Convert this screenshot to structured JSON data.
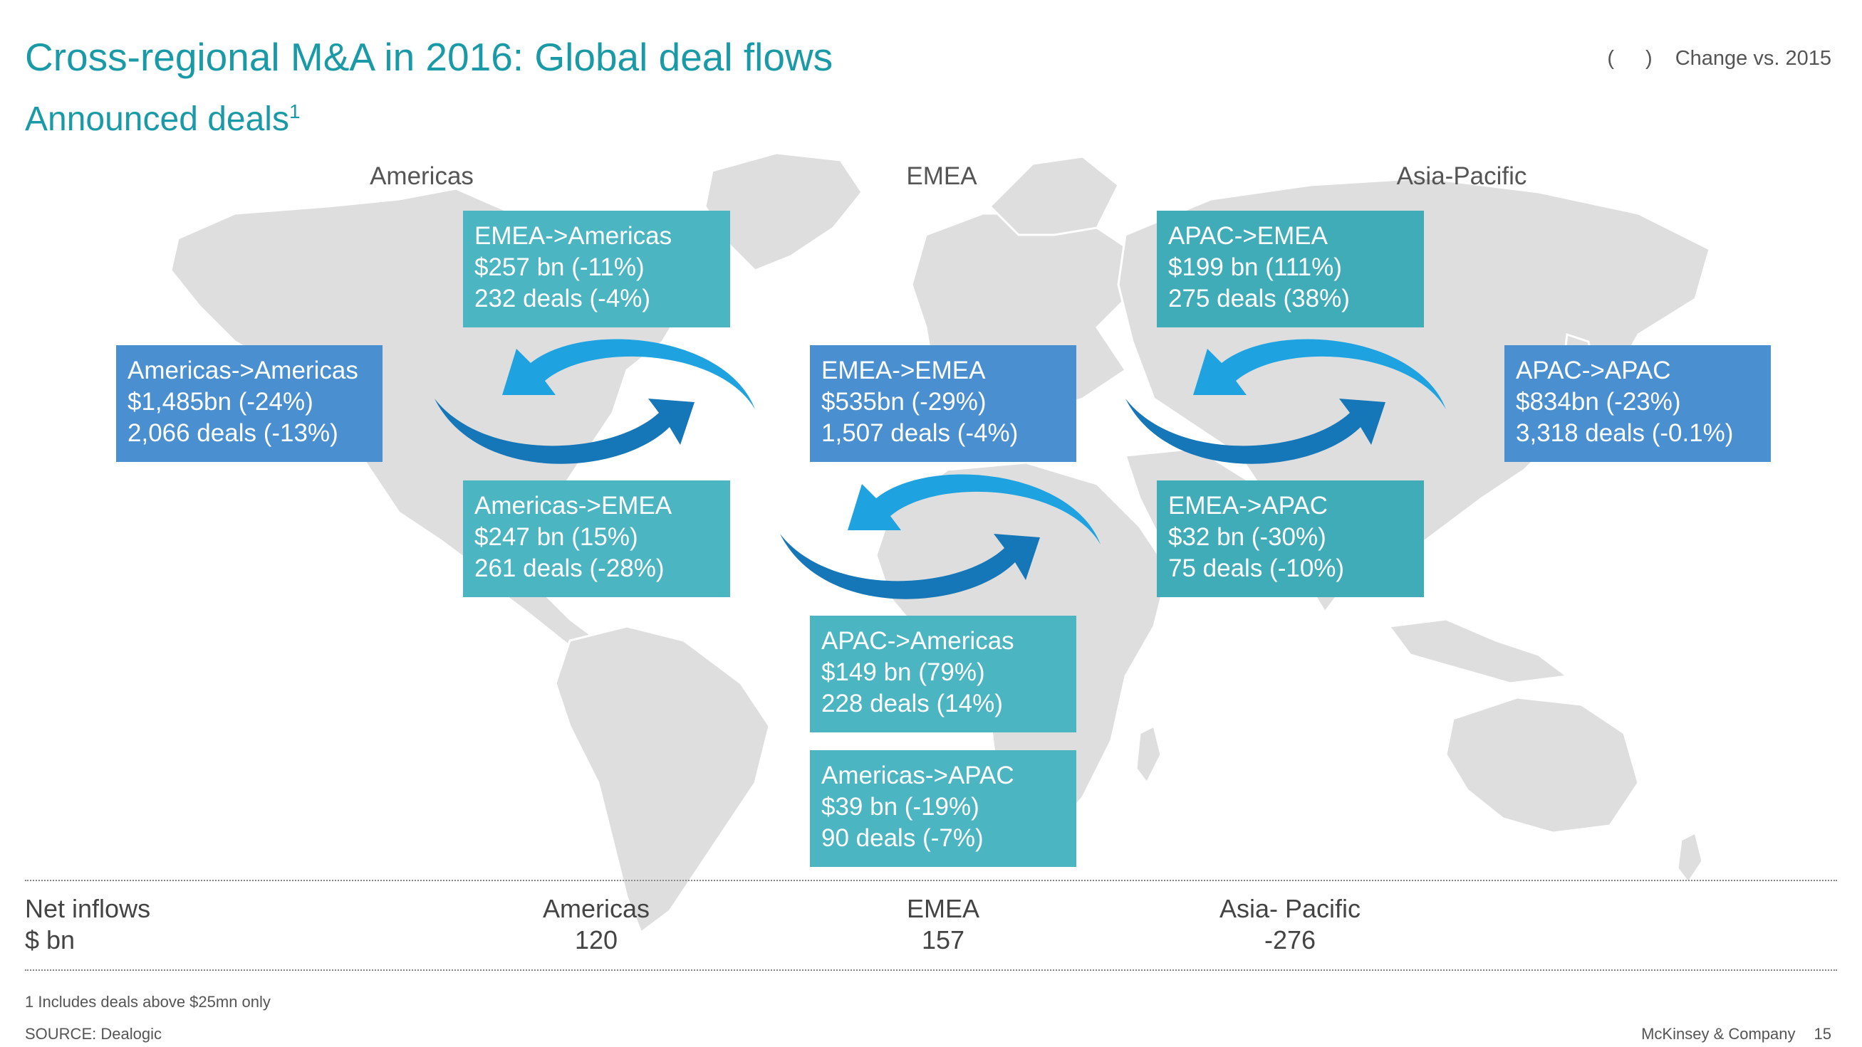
{
  "header": {
    "title": "Cross-regional M&A in 2016: Global deal flows",
    "subtitle": "Announced deals",
    "subtitle_sup": "1",
    "legend_symbol": "( )",
    "legend_label": "Change vs. 2015"
  },
  "regions": {
    "americas": "Americas",
    "emea": "EMEA",
    "apac": "Asia-Pacific"
  },
  "flows": {
    "emea_americas": {
      "label": "EMEA->Americas",
      "value": "$257 bn (-11%)",
      "deals": "232 deals (-4%)"
    },
    "americas_americas": {
      "label": "Americas->Americas",
      "value": "$1,485bn (-24%)",
      "deals": "2,066 deals (-13%)"
    },
    "americas_emea": {
      "label": "Americas->EMEA",
      "value": "$247 bn (15%)",
      "deals": "261 deals (-28%)"
    },
    "emea_emea": {
      "label": "EMEA->EMEA",
      "value": "$535bn (-29%)",
      "deals": "1,507 deals (-4%)"
    },
    "apac_americas": {
      "label": "APAC->Americas",
      "value": "$149 bn (79%)",
      "deals": "228 deals (14%)"
    },
    "americas_apac": {
      "label": "Americas->APAC",
      "value": "$39 bn (-19%)",
      "deals": "90 deals (-7%)"
    },
    "apac_emea": {
      "label": "APAC->EMEA",
      "value": "$199 bn (111%)",
      "deals": "275 deals (38%)"
    },
    "emea_apac": {
      "label": "EMEA->APAC",
      "value": "$32 bn (-30%)",
      "deals": "75 deals (-10%)"
    },
    "apac_apac": {
      "label": "APAC->APAC",
      "value": "$834bn (-23%)",
      "deals": "3,318 deals (-0.1%)"
    }
  },
  "net_inflows": {
    "label": "Net inflows",
    "unit": "$ bn",
    "americas": {
      "name": "Americas",
      "value": "120"
    },
    "emea": {
      "name": "EMEA",
      "value": "157"
    },
    "apac": {
      "name": "Asia- Pacific",
      "value": "-276"
    }
  },
  "footer": {
    "footnote": "1 Includes deals above $25mn only",
    "source": "SOURCE: Dealogic",
    "brand": "McKinsey & Company",
    "page": "15"
  },
  "colors": {
    "title": "#1a9aa6",
    "box_teal": "#4bb5c1",
    "box_blue": "#4a8fd0",
    "arrow_light": "#1fa3e0",
    "arrow_dark": "#1577b8",
    "map": "#dcdcdc"
  }
}
